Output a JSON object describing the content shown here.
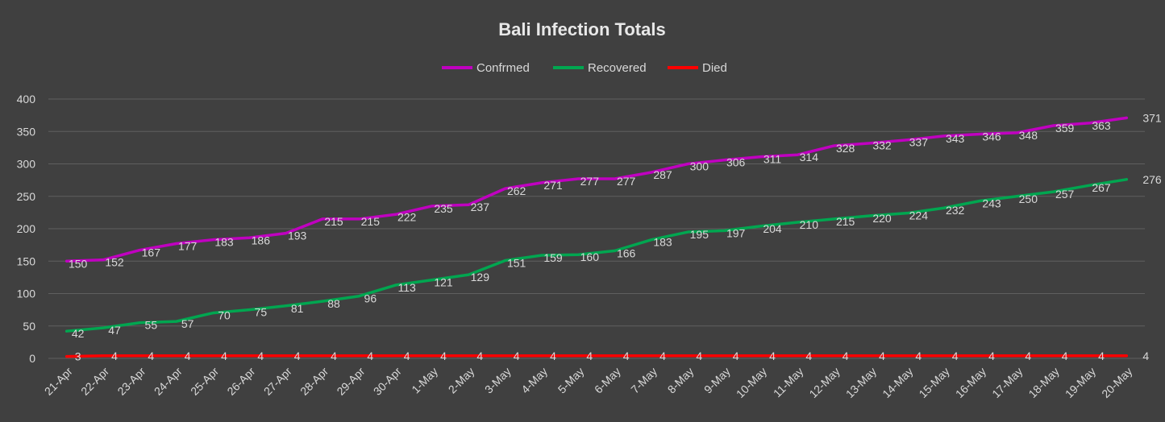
{
  "chart_data": {
    "type": "line",
    "title": "Bali Infection Totals",
    "xlabel": "",
    "ylabel": "",
    "ylim": [
      0,
      400
    ],
    "yticks": [
      0,
      50,
      100,
      150,
      200,
      250,
      300,
      350,
      400
    ],
    "grid": true,
    "legend": "top-center",
    "categories": [
      "21-Apr",
      "22-Apr",
      "23-Apr",
      "24-Apr",
      "25-Apr",
      "26-Apr",
      "27-Apr",
      "28-Apr",
      "29-Apr",
      "30-Apr",
      "1-May",
      "2-May",
      "3-May",
      "4-May",
      "5-May",
      "6-May",
      "7-May",
      "8-May",
      "9-May",
      "10-May",
      "11-May",
      "12-May",
      "13-May",
      "14-May",
      "15-May",
      "16-May",
      "17-May",
      "18-May",
      "19-May",
      "20-May"
    ],
    "series": [
      {
        "name": "Confrmed",
        "color": "#c000c0",
        "values": [
          150,
          152,
          167,
          177,
          183,
          186,
          193,
          215,
          215,
          222,
          235,
          237,
          262,
          271,
          277,
          277,
          287,
          300,
          306,
          311,
          314,
          328,
          332,
          337,
          343,
          346,
          348,
          359,
          363,
          371
        ]
      },
      {
        "name": "Recovered",
        "color": "#00a650",
        "values": [
          42,
          47,
          55,
          57,
          70,
          75,
          81,
          88,
          96,
          113,
          121,
          129,
          151,
          159,
          160,
          166,
          183,
          195,
          197,
          204,
          210,
          215,
          220,
          224,
          232,
          243,
          250,
          257,
          267,
          276
        ]
      },
      {
        "name": "Died",
        "color": "#ff0000",
        "values": [
          3,
          4,
          4,
          4,
          4,
          4,
          4,
          4,
          4,
          4,
          4,
          4,
          4,
          4,
          4,
          4,
          4,
          4,
          4,
          4,
          4,
          4,
          4,
          4,
          4,
          4,
          4,
          4,
          4,
          4
        ]
      }
    ]
  }
}
